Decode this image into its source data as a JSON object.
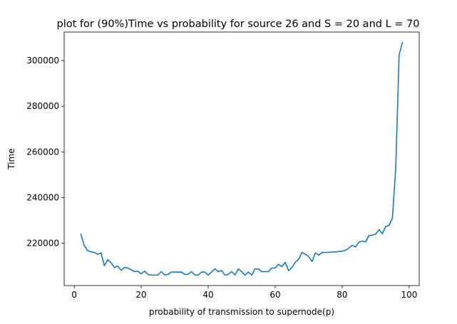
{
  "chart_data": {
    "type": "line",
    "title": "plot for (90%)Time vs probability for source 26 and S = 20 and L = 70",
    "xlabel": "probability of transmission to supernode(p)",
    "ylabel": "Time",
    "xlim": [
      -3,
      103
    ],
    "ylim": [
      201500,
      312500
    ],
    "grid": false,
    "line_color": "#1f77b4",
    "xticks": [
      0,
      20,
      40,
      60,
      80,
      100
    ],
    "xtick_labels": [
      "0",
      "20",
      "40",
      "60",
      "80",
      "100"
    ],
    "yticks": [
      220000,
      240000,
      260000,
      280000,
      300000
    ],
    "ytick_labels": [
      "220000",
      "240000",
      "260000",
      "280000",
      "300000"
    ],
    "series": [
      {
        "x": [
          2,
          3,
          4,
          5,
          6,
          7,
          8,
          9,
          10,
          11,
          12,
          13,
          14,
          15,
          16,
          17,
          18,
          19,
          20,
          21,
          22,
          23,
          24,
          25,
          26,
          27,
          28,
          29,
          30,
          31,
          32,
          33,
          34,
          35,
          36,
          37,
          38,
          39,
          40,
          41,
          42,
          43,
          44,
          45,
          46,
          47,
          48,
          49,
          50,
          51,
          52,
          53,
          54,
          55,
          56,
          57,
          58,
          59,
          60,
          61,
          62,
          63,
          64,
          65,
          66,
          67,
          68,
          69,
          70,
          71,
          72,
          73,
          74,
          75,
          76,
          77,
          78,
          79,
          80,
          81,
          82,
          83,
          84,
          85,
          86,
          87,
          88,
          89,
          90,
          91,
          92,
          93,
          94,
          95,
          96,
          97,
          98
        ],
        "values": [
          224000,
          219000,
          216800,
          216300,
          216000,
          215200,
          215800,
          210200,
          212800,
          211500,
          209400,
          210000,
          208200,
          209400,
          209200,
          208400,
          207600,
          207800,
          206600,
          207800,
          206400,
          206100,
          206100,
          206100,
          207600,
          206100,
          206400,
          207400,
          207400,
          207400,
          207400,
          206400,
          206400,
          207600,
          206100,
          206100,
          207400,
          207400,
          206100,
          207400,
          208800,
          207600,
          208100,
          206100,
          206400,
          207600,
          206100,
          208800,
          207600,
          206100,
          207400,
          206100,
          208800,
          208800,
          207600,
          207600,
          207600,
          209200,
          209200,
          210800,
          209800,
          211700,
          208000,
          209400,
          211700,
          213000,
          216000,
          215200,
          214200,
          212000,
          215800,
          214800,
          216000,
          216000,
          216000,
          216200,
          216200,
          216400,
          216600,
          216900,
          217900,
          219100,
          218400,
          220500,
          221000,
          220600,
          223400,
          223600,
          224000,
          226000,
          224200,
          227400,
          227800,
          231000,
          253200,
          302500,
          308000
        ]
      }
    ]
  }
}
